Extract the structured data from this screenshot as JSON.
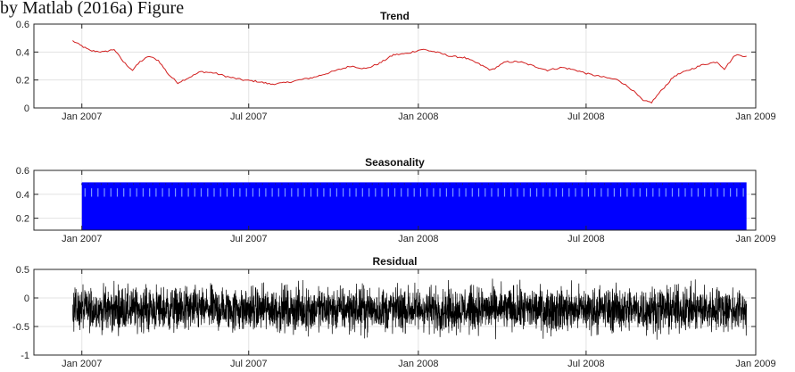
{
  "page": {
    "top_caption": "by Matlab (2016a) Figure"
  },
  "style": {
    "trend_color": "#d21f1f",
    "seasonality_color": "#0000ff",
    "residual_color": "#000000",
    "grid_color": "#e3e3e3",
    "axis_color": "#262626"
  },
  "chart_data": [
    {
      "type": "line",
      "title": "Trend",
      "color": "trend",
      "xlabel": "",
      "ylabel": "",
      "xlim": [
        "2006-11-10",
        "2009-01-01"
      ],
      "ylim": [
        0,
        0.6
      ],
      "x_ticks": [
        "2007-01-01",
        "2007-07-01",
        "2008-01-01",
        "2008-07-01",
        "2009-01-01"
      ],
      "x_tick_labels": [
        "Jan 2007",
        "Jul 2007",
        "Jan 2008",
        "Jul 2008",
        "Jan 2009"
      ],
      "y_ticks": [
        0,
        0.2,
        0.4,
        0.6
      ],
      "y_tick_labels": [
        "0",
        "0.2",
        "0.4",
        "0.6"
      ],
      "grid": true,
      "series": [
        {
          "x": [
            "2006-12-22",
            "2006-12-30",
            "2007-01-10",
            "2007-01-25",
            "2007-02-05",
            "2007-02-15",
            "2007-02-25",
            "2007-03-05",
            "2007-03-15",
            "2007-03-25",
            "2007-04-05",
            "2007-04-15",
            "2007-04-28",
            "2007-05-10",
            "2007-05-25",
            "2007-06-10",
            "2007-06-25",
            "2007-07-10",
            "2007-07-25",
            "2007-08-10",
            "2007-08-25",
            "2007-09-10",
            "2007-09-25",
            "2007-10-05",
            "2007-10-20",
            "2007-11-05",
            "2007-11-20",
            "2007-12-05",
            "2007-12-20",
            "2008-01-05",
            "2008-01-20",
            "2008-02-05",
            "2008-02-20",
            "2008-03-05",
            "2008-03-20",
            "2008-04-05",
            "2008-04-20",
            "2008-05-05",
            "2008-05-20",
            "2008-06-05",
            "2008-06-20",
            "2008-07-05",
            "2008-07-20",
            "2008-08-05",
            "2008-08-20",
            "2008-09-01",
            "2008-09-10",
            "2008-09-20",
            "2008-10-05",
            "2008-10-20",
            "2008-11-05",
            "2008-11-20",
            "2008-11-28",
            "2008-12-10",
            "2008-12-22"
          ],
          "y": [
            0.48,
            0.45,
            0.41,
            0.4,
            0.42,
            0.33,
            0.27,
            0.33,
            0.37,
            0.34,
            0.24,
            0.18,
            0.22,
            0.26,
            0.25,
            0.22,
            0.2,
            0.19,
            0.17,
            0.18,
            0.2,
            0.22,
            0.25,
            0.27,
            0.3,
            0.28,
            0.32,
            0.38,
            0.39,
            0.42,
            0.4,
            0.37,
            0.36,
            0.32,
            0.27,
            0.33,
            0.33,
            0.3,
            0.27,
            0.29,
            0.27,
            0.24,
            0.22,
            0.2,
            0.13,
            0.05,
            0.04,
            0.12,
            0.23,
            0.27,
            0.31,
            0.33,
            0.28,
            0.38,
            0.37
          ]
        }
      ]
    },
    {
      "type": "line",
      "title": "Seasonality",
      "color": "seasonality",
      "xlabel": "",
      "ylabel": "",
      "xlim": [
        "2006-11-10",
        "2009-01-01"
      ],
      "ylim": [
        0.1,
        0.6
      ],
      "x_ticks": [
        "2007-01-01",
        "2007-07-01",
        "2008-01-01",
        "2008-07-01",
        "2009-01-01"
      ],
      "x_tick_labels": [
        "Jan 2007",
        "Jul 2007",
        "Jan 2008",
        "Jul 2008",
        "Jan 2009"
      ],
      "y_ticks": [
        0.2,
        0.4,
        0.6
      ],
      "y_tick_labels": [
        "0.2",
        "0.4",
        "0.6"
      ],
      "grid": true,
      "series": [
        {
          "x_start": "2007-01-01",
          "x_end": "2008-12-22",
          "cycle_days": 7,
          "y_min": 0.1,
          "y_max": 0.5
        }
      ]
    },
    {
      "type": "line",
      "title": "Residual",
      "color": "residual",
      "xlabel": "",
      "ylabel": "",
      "xlim": [
        "2006-11-10",
        "2009-01-01"
      ],
      "ylim": [
        -1,
        0.5
      ],
      "x_ticks": [
        "2007-01-01",
        "2007-07-01",
        "2008-01-01",
        "2008-07-01",
        "2009-01-01"
      ],
      "x_tick_labels": [
        "Jan 2007",
        "Jul 2007",
        "Jan 2008",
        "Jul 2008",
        "Jan 2009"
      ],
      "y_ticks": [
        -1,
        -0.5,
        0,
        0.5
      ],
      "y_tick_labels": [
        "-1",
        "-0.5",
        "0",
        "0.5"
      ],
      "grid": true,
      "series": [
        {
          "x_start": "2006-12-22",
          "x_end": "2008-12-22",
          "center": -0.2,
          "y_min": -0.85,
          "y_max": 0.47
        }
      ]
    }
  ]
}
